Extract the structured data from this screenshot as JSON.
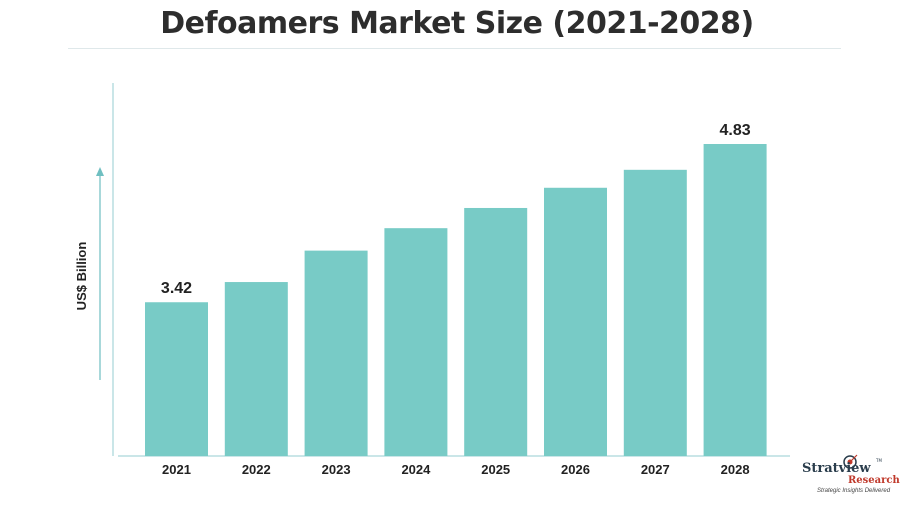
{
  "chart_data": {
    "type": "bar",
    "title": "Defoamers Market Size (2021-2028)",
    "ylabel": "US$ Billion",
    "xlabel": "",
    "categories": [
      "2021",
      "2022",
      "2023",
      "2024",
      "2025",
      "2026",
      "2027",
      "2028"
    ],
    "values": [
      3.42,
      3.6,
      3.88,
      4.08,
      4.26,
      4.44,
      4.6,
      4.83
    ],
    "data_labels": {
      "2021": "3.42",
      "2028": "4.83"
    },
    "ylim": [
      2.05,
      4.83
    ],
    "grid": false,
    "legend": "none",
    "bar_color": "#78cbc6",
    "axis_color": "#b9dee0"
  },
  "brand": {
    "name": "Stratview",
    "sub": "Research",
    "tagline": "Strategic Insights Delivered",
    "tm": "TM"
  },
  "colors": {
    "title": "#2d2d2d",
    "brand_dark": "#2a3d4c",
    "brand_red": "#c0392b"
  }
}
